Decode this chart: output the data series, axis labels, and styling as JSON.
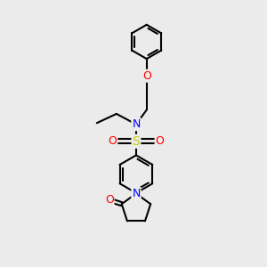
{
  "bg_color": "#ebebeb",
  "atom_colors": {
    "C": "#000000",
    "N": "#0000ff",
    "O": "#ff0000",
    "S": "#cccc00"
  },
  "bond_color": "#000000",
  "bond_width": 1.5,
  "figsize": [
    3.0,
    3.0
  ],
  "dpi": 100,
  "xlim": [
    0,
    10
  ],
  "ylim": [
    0,
    10
  ]
}
